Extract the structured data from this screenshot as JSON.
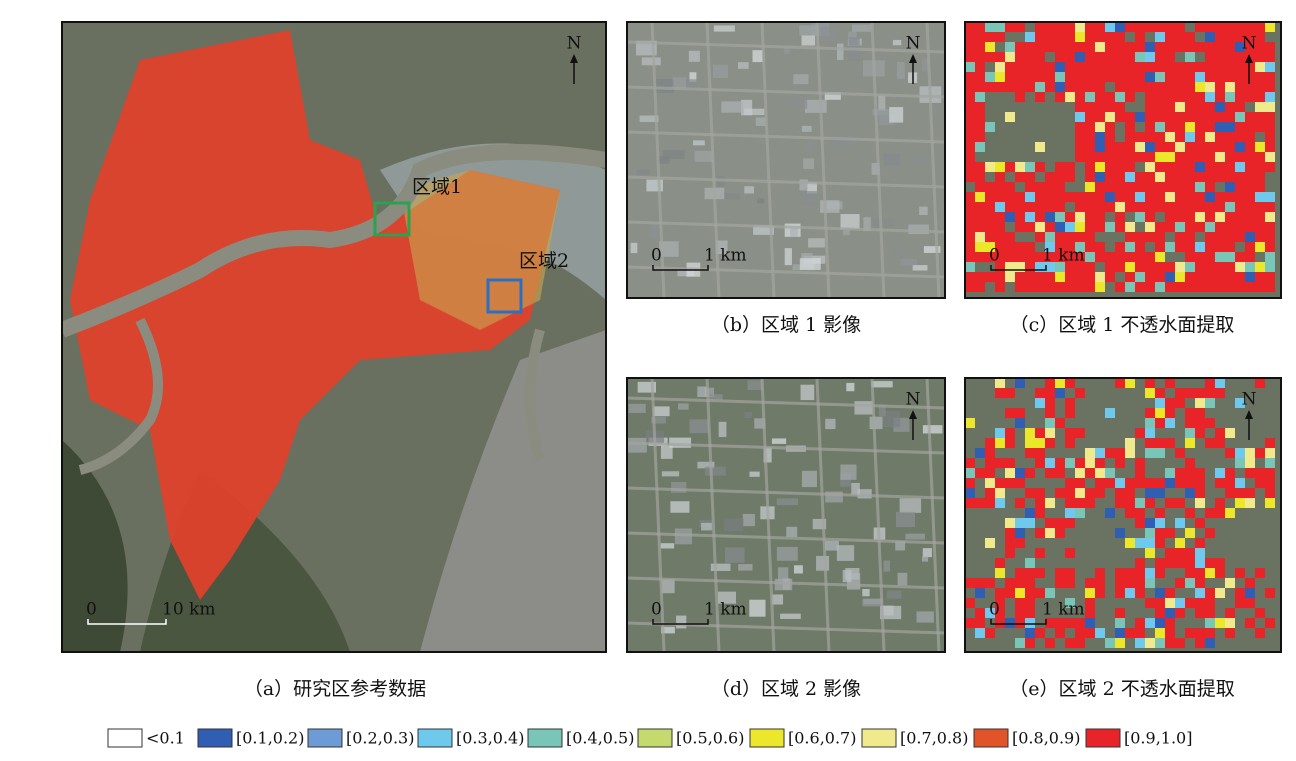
{
  "panels": {
    "a": {
      "caption": "（a）研究区参考数据",
      "region_1": "区域1",
      "region_2": "区域2",
      "north": "N",
      "scale_start": "0",
      "scale_end": "10 km"
    },
    "b": {
      "caption": "（b）区域 1 影像",
      "north": "N",
      "scale_start": "0",
      "scale_end": "1 km"
    },
    "c": {
      "caption": "（c）区域 1 不透水面提取",
      "north": "N",
      "scale_start": "0",
      "scale_end": "1 km"
    },
    "d": {
      "caption": "（d）区域 2 影像",
      "north": "N",
      "scale_start": "0",
      "scale_end": "1 km"
    },
    "e": {
      "caption": "（e）区域 2 不透水面提取",
      "north": "N",
      "scale_start": "0",
      "scale_end": "1 km"
    }
  },
  "legend": [
    {
      "label": "<0.1",
      "color": "#ffffff"
    },
    {
      "label": "[0.1,0.2)",
      "color": "#2f5eb3"
    },
    {
      "label": "[0.2,0.3)",
      "color": "#6d9bd6"
    },
    {
      "label": "[0.3,0.4)",
      "color": "#6ec9ec"
    },
    {
      "label": "[0.4,0.5)",
      "color": "#79c6b8"
    },
    {
      "label": "[0.5,0.6)",
      "color": "#c4d96e"
    },
    {
      "label": "[0.6,0.7)",
      "color": "#ece72a"
    },
    {
      "label": "[0.7,0.8)",
      "color": "#f1ea8c"
    },
    {
      "label": "[0.8,0.9)",
      "color": "#e1542a"
    },
    {
      "label": "[0.9,1.0]",
      "color": "#e82428"
    }
  ]
}
